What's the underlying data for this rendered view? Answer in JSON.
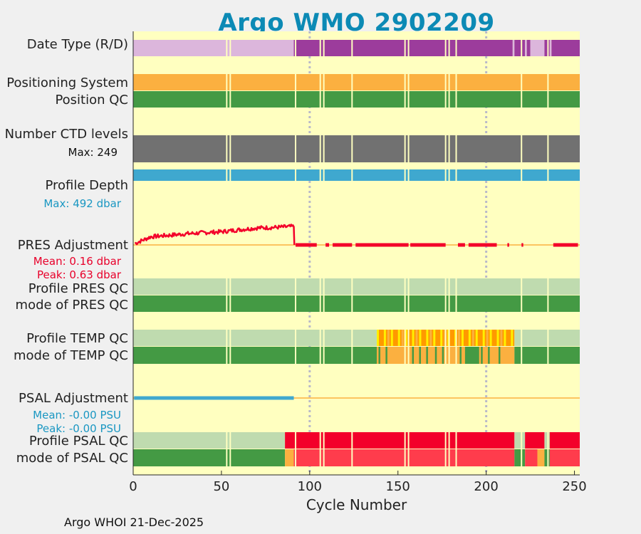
{
  "title": "Argo WMO 2902209",
  "footer": "Argo WHOI 21-Dec-2025",
  "labels": {
    "date_type": "Date Type (R/D)",
    "positioning": "Positioning System",
    "position_qc": "Position QC",
    "ctd_levels": "Number CTD levels",
    "ctd_max": "Max: 249",
    "profile_depth": "Profile Depth",
    "depth_max": "Max:  492 dbar",
    "pres_adj": "PRES Adjustment",
    "pres_mean": "Mean: 0.16 dbar",
    "pres_peak": "Peak: 0.63 dbar",
    "pres_qc": "Profile PRES QC",
    "pres_mode": "mode of PRES QC",
    "temp_qc": "Profile TEMP QC",
    "temp_mode": "mode of TEMP QC",
    "psal_adj": "PSAL Adjustment",
    "psal_mean": "Mean: -0.00 PSU",
    "psal_peak": "Peak: -0.00 PSU",
    "psal_qc": "Profile PSAL QC",
    "psal_mode": "mode of PSAL QC"
  },
  "colors": {
    "background": "#ffffc0",
    "realtime": "#dcb6dc",
    "delayed": "#9c3c9c",
    "orange": "#fbb040",
    "green": "#449a44",
    "lightgreen": "#bfdbaf",
    "gray": "#717171",
    "blue": "#3fa8cf",
    "red": "#f3002a",
    "salmon": "#ff3c4c",
    "yellow": "#ffef00",
    "darkorange": "#ff9900",
    "title": "#0c8ab5"
  },
  "chart_data": {
    "type": "heatmap",
    "xlabel": "Cycle Number",
    "xlim": [
      0,
      253
    ],
    "xticks": [
      0,
      50,
      100,
      150,
      200,
      250
    ],
    "xtick_labels": [
      "0",
      "50",
      "100",
      "150",
      "200",
      "250"
    ],
    "gridlines_x": [
      100,
      200
    ],
    "missing_cycles": [
      53,
      55,
      92,
      106,
      108,
      124,
      154,
      156,
      177,
      179,
      183,
      220,
      235
    ],
    "date_type": [
      {
        "from": 0,
        "to": 91,
        "mode": "R"
      },
      {
        "from": 91,
        "to": 215,
        "mode": "D"
      },
      {
        "from": 215,
        "to": 216,
        "mode": "R"
      },
      {
        "from": 216,
        "to": 222,
        "mode": "D"
      },
      {
        "from": 222,
        "to": 223,
        "mode": "R"
      },
      {
        "from": 223,
        "to": 225,
        "mode": "D"
      },
      {
        "from": 225,
        "to": 233,
        "mode": "R"
      },
      {
        "from": 233,
        "to": 236,
        "mode": "D"
      },
      {
        "from": 236,
        "to": 237,
        "mode": "R"
      },
      {
        "from": 237,
        "to": 253,
        "mode": "D"
      }
    ],
    "positioning_system": "GPS",
    "position_qc": 1,
    "ctd_levels_max": 249,
    "profile_depth_max_dbar": 492,
    "pres_adjustment": {
      "mean_dbar": 0.16,
      "peak_dbar": 0.63,
      "early_cycles": [
        1,
        10,
        20,
        30,
        40,
        50,
        60,
        70,
        80,
        90
      ],
      "early_values": [
        0.05,
        0.28,
        0.33,
        0.38,
        0.42,
        0.45,
        0.52,
        0.58,
        0.6,
        0.63
      ],
      "late_segments": [
        [
          92,
          104
        ],
        [
          109,
          111
        ],
        [
          113,
          124
        ],
        [
          126,
          156
        ],
        [
          157,
          177
        ],
        [
          184,
          188
        ],
        [
          190,
          206
        ],
        [
          212,
          213
        ],
        [
          220,
          221
        ],
        [
          238,
          252
        ]
      ]
    },
    "pres_qc": {
      "profile": 1,
      "mode": 1
    },
    "temp_qc": {
      "profile": [
        {
          "from": 0,
          "to": 138,
          "flag": "A"
        },
        {
          "from": 138,
          "to": 216,
          "flag": "mixed B/C/D"
        },
        {
          "from": 216,
          "to": 253,
          "flag": "A"
        }
      ],
      "mode": [
        {
          "from": 0,
          "to": 138,
          "qc": 1
        },
        {
          "from": 138,
          "to": 216,
          "qc": "mixed 1/3"
        },
        {
          "from": 216,
          "to": 253,
          "qc": 1
        }
      ]
    },
    "psal_adjustment": {
      "mean_psu": -0.0,
      "peak_psu": -0.0,
      "adjusted_until_cycle": 91
    },
    "psal_qc": {
      "profile": [
        {
          "from": 0,
          "to": 86,
          "flag": "A"
        },
        {
          "from": 86,
          "to": 216,
          "flag": "F"
        },
        {
          "from": 216,
          "to": 222,
          "flag": "A"
        },
        {
          "from": 222,
          "to": 233,
          "flag": "F"
        },
        {
          "from": 233,
          "to": 236,
          "flag": "A"
        },
        {
          "from": 236,
          "to": 253,
          "flag": "F"
        }
      ],
      "mode": [
        {
          "from": 0,
          "to": 86,
          "qc": 1
        },
        {
          "from": 86,
          "to": 91,
          "qc": 3
        },
        {
          "from": 91,
          "to": 216,
          "qc": 4
        },
        {
          "from": 216,
          "to": 222,
          "qc": 1
        },
        {
          "from": 222,
          "to": 229,
          "qc": 4
        },
        {
          "from": 229,
          "to": 233,
          "qc": 3
        },
        {
          "from": 233,
          "to": 236,
          "qc": 1
        },
        {
          "from": 236,
          "to": 253,
          "qc": 4
        }
      ]
    }
  }
}
